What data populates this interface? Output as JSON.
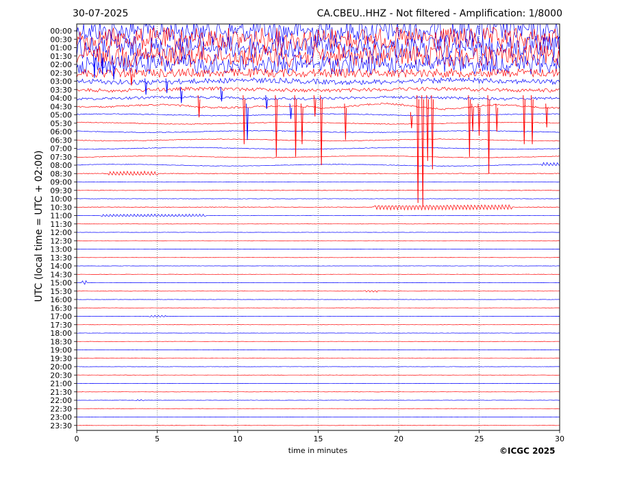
{
  "header": {
    "date": "30-07-2025",
    "title": "CA.CBEU..HHZ - Not filtered - Amplification: 1/8000"
  },
  "footer": {
    "copyright": "©ICGC 2025"
  },
  "chart_data": {
    "type": "line",
    "title": "CA.CBEU..HHZ - Not filtered - Amplification: 1/8000",
    "xlabel": "time in minutes",
    "ylabel": "UTC (local time = UTC + 02:00)",
    "xlim": [
      0,
      30
    ],
    "xticks": [
      0,
      5,
      10,
      15,
      20,
      25,
      30
    ],
    "x_gridlines": [
      5,
      10,
      15,
      20,
      25
    ],
    "rows": [
      "00:00",
      "00:30",
      "01:00",
      "01:30",
      "02:00",
      "02:30",
      "03:00",
      "03:30",
      "04:00",
      "04:30",
      "05:00",
      "05:30",
      "06:00",
      "06:30",
      "07:00",
      "07:30",
      "08:00",
      "08:30",
      "09:00",
      "09:30",
      "10:00",
      "10:30",
      "11:00",
      "11:30",
      "12:00",
      "12:30",
      "13:00",
      "13:30",
      "14:00",
      "14:30",
      "15:00",
      "15:30",
      "16:00",
      "16:30",
      "17:00",
      "17:30",
      "18:00",
      "18:30",
      "19:00",
      "19:30",
      "20:00",
      "20:30",
      "21:00",
      "21:30",
      "22:00",
      "22:30",
      "23:00",
      "23:30"
    ],
    "trace_colors": [
      "#0000ff",
      "#ff0000"
    ],
    "noise_amplitude_by_row": [
      1.0,
      1.0,
      1.0,
      0.95,
      0.85,
      0.6,
      0.35,
      0.25,
      0.18,
      0.12,
      0.06,
      0.05,
      0.05,
      0.05,
      0.04,
      0.04,
      0.04,
      0.05,
      0.03,
      0.03,
      0.03,
      0.04,
      0.03,
      0.02,
      0.02,
      0.02,
      0.02,
      0.02,
      0.02,
      0.02,
      0.02,
      0.02,
      0.02,
      0.02,
      0.02,
      0.02,
      0.02,
      0.02,
      0.02,
      0.02,
      0.02,
      0.02,
      0.02,
      0.02,
      0.02,
      0.02,
      0.02,
      0.02
    ],
    "events": [
      {
        "row": 3,
        "minute": 1.1,
        "depth": 2.6,
        "color": "#0000ff"
      },
      {
        "row": 3,
        "minute": 1.6,
        "depth": 2.2,
        "color": "#0000ff"
      },
      {
        "row": 4,
        "minute": 2.3,
        "depth": 1.8,
        "color": "#0000ff"
      },
      {
        "row": 5,
        "minute": 3.4,
        "depth": 1.5,
        "color": "#ff0000"
      },
      {
        "row": 6,
        "minute": 4.3,
        "depth": 1.6,
        "color": "#0000ff"
      },
      {
        "row": 6,
        "minute": 5.6,
        "depth": 1.4,
        "color": "#0000ff"
      },
      {
        "row": 7,
        "minute": 6.5,
        "depth": 1.6,
        "color": "#0000ff"
      },
      {
        "row": 8,
        "minute": 7.6,
        "depth": 2.3,
        "color": "#ff0000"
      },
      {
        "row": 7,
        "minute": 9.0,
        "depth": 1.4,
        "color": "#0000ff"
      },
      {
        "row": 8,
        "minute": 10.4,
        "depth": 5.5,
        "color": "#ff0000"
      },
      {
        "row": 9,
        "minute": 10.6,
        "depth": 4.0,
        "color": "#0000ff"
      },
      {
        "row": 8,
        "minute": 11.8,
        "depth": 1.3,
        "color": "#0000ff"
      },
      {
        "row": 8,
        "minute": 12.4,
        "depth": 7.0,
        "color": "#ff0000"
      },
      {
        "row": 9,
        "minute": 13.3,
        "depth": 1.5,
        "color": "#0000ff"
      },
      {
        "row": 8,
        "minute": 13.6,
        "depth": 7.0,
        "color": "#ff0000"
      },
      {
        "row": 9,
        "minute": 14.0,
        "depth": 4.5,
        "color": "#ff0000"
      },
      {
        "row": 8,
        "minute": 14.8,
        "depth": 2.2,
        "color": "#ff0000"
      },
      {
        "row": 8,
        "minute": 15.2,
        "depth": 8.0,
        "color": "#ff0000"
      },
      {
        "row": 9,
        "minute": 16.7,
        "depth": 4.0,
        "color": "#ff0000"
      },
      {
        "row": 10,
        "minute": 20.8,
        "depth": 1.6,
        "color": "#ff0000"
      },
      {
        "row": 8,
        "minute": 21.2,
        "depth": 12.5,
        "color": "#ff0000"
      },
      {
        "row": 8,
        "minute": 21.5,
        "depth": 13.0,
        "color": "#ff0000"
      },
      {
        "row": 8,
        "minute": 21.8,
        "depth": 7.5,
        "color": "#ff0000"
      },
      {
        "row": 8,
        "minute": 22.1,
        "depth": 8.5,
        "color": "#ff0000"
      },
      {
        "row": 8,
        "minute": 24.4,
        "depth": 7.0,
        "color": "#ff0000"
      },
      {
        "row": 9,
        "minute": 24.6,
        "depth": 3.0,
        "color": "#ff0000"
      },
      {
        "row": 9,
        "minute": 25.0,
        "depth": 3.5,
        "color": "#ff0000"
      },
      {
        "row": 8,
        "minute": 25.6,
        "depth": 9.0,
        "color": "#ff0000"
      },
      {
        "row": 9,
        "minute": 26.1,
        "depth": 3.0,
        "color": "#ff0000"
      },
      {
        "row": 8,
        "minute": 27.8,
        "depth": 5.5,
        "color": "#ff0000"
      },
      {
        "row": 8,
        "minute": 28.3,
        "depth": 5.5,
        "color": "#ff0000"
      },
      {
        "row": 9,
        "minute": 29.2,
        "depth": 2.5,
        "color": "#ff0000"
      }
    ],
    "wavelets": [
      {
        "row": 17,
        "start": 2.0,
        "end": 5.0,
        "amp": 0.25
      },
      {
        "row": 16,
        "start": 28.8,
        "end": 30.0,
        "amp": 0.2
      },
      {
        "row": 21,
        "start": 18.5,
        "end": 27.0,
        "amp": 0.3
      },
      {
        "row": 22,
        "start": 1.5,
        "end": 8.0,
        "amp": 0.15
      },
      {
        "row": 30,
        "start": 0.3,
        "end": 0.6,
        "amp": 0.25
      },
      {
        "row": 31,
        "start": 17.8,
        "end": 18.8,
        "amp": 0.12
      },
      {
        "row": 34,
        "start": 4.5,
        "end": 5.5,
        "amp": 0.1
      },
      {
        "row": 44,
        "start": 3.6,
        "end": 4.2,
        "amp": 0.08
      }
    ]
  }
}
